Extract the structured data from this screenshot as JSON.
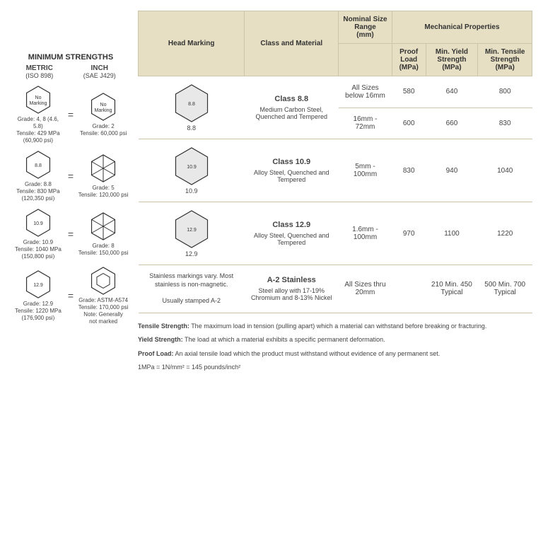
{
  "left": {
    "title": "MINIMUM STRENGTHS",
    "cols": [
      {
        "name": "METRIC",
        "sub": "(ISO 898)"
      },
      {
        "name": "INCH",
        "sub": "(SAE J429)"
      }
    ],
    "rows": [
      {
        "mLabel": "No\nMarking",
        "mTxt": "Grade: 4, 8 (4.6, 5.8)\nTensile: 429 MPa\n(60,900 psi)",
        "iLabel": "No\nMarking",
        "iTxt": "Grade: 2\nTensile: 60,000 psi",
        "iLines": 0
      },
      {
        "mLabel": "8.8",
        "mTxt": "Grade: 8.8\nTensile: 830 MPa\n(120,350 psi)",
        "iLabel": "",
        "iTxt": "Grade: 5\nTensile: 120,000 psi",
        "iLines": 3
      },
      {
        "mLabel": "10.9",
        "mTxt": "Grade: 10.9\nTensile: 1040 MPa\n(150,800 psi)",
        "iLabel": "",
        "iTxt": "Grade: 8\nTensile: 150,000 psi",
        "iLines": 6
      },
      {
        "mLabel": "12.9",
        "mTxt": "Grade: 12.9\nTensile: 1220 MPa\n(176,900 psi)",
        "iLabel": "",
        "iTxt": "Grade: ASTM-A574\nTensile: 170,000 psi\nNote: Generally\nnot marked",
        "iLines": 0,
        "inset": true
      }
    ]
  },
  "table": {
    "headers": {
      "hm": "Head Marking",
      "cm": "Class and Material",
      "nom": "Nominal Size Range",
      "nomSub": "(mm)",
      "mech": "Mechanical Properties",
      "proof": "Proof Load",
      "proofSub": "(MPa)",
      "yield": "Min. Yield Strength",
      "yieldSub": "(MPa)",
      "tens": "Min. Tensile Strength",
      "tensSub": "(MPa)"
    },
    "rows": [
      {
        "mark": "8.8",
        "className": "Class 8.8",
        "mat": "Medium Carbon Steel, Quenched and Tempered",
        "span": 2,
        "sub": [
          {
            "size": "All Sizes below 16mm",
            "p": "580",
            "y": "640",
            "t": "800"
          },
          {
            "size": "16mm - 72mm",
            "p": "600",
            "y": "660",
            "t": "830"
          }
        ]
      },
      {
        "mark": "10.9",
        "className": "Class 10.9",
        "mat": "Alloy Steel, Quenched and Tempered",
        "span": 1,
        "sub": [
          {
            "size": "5mm - 100mm",
            "p": "830",
            "y": "940",
            "t": "1040"
          }
        ]
      },
      {
        "mark": "12.9",
        "className": "Class 12.9",
        "mat": "Alloy Steel, Quenched and Tempered",
        "span": 1,
        "sub": [
          {
            "size": "1.6mm - 100mm",
            "p": "970",
            "y": "1100",
            "t": "1220"
          }
        ]
      },
      {
        "markText": "Stainless markings vary. Most stainless is non-magnetic.\n\nUsually stamped A-2",
        "className": "A-2 Stainless",
        "mat": "Steel alloy with 17-19% Chromium and 8-13% Nickel",
        "span": 1,
        "sub": [
          {
            "size": "All Sizes thru 20mm",
            "p": "",
            "y": "210 Min. 450 Typical",
            "t": "500 Min. 700 Typical"
          }
        ]
      }
    ]
  },
  "notes": {
    "tensile": "Tensile Strength: The maximum load in tension (pulling apart) which a material can withstand before breaking or fracturing.",
    "yield": "Yield Strength: The load at which a material exhibits a specific permanent deformation.",
    "proof": "Proof Load: An axial tensile load which the product must withstand without evidence of any permanent set.",
    "conv": "1MPa = 1N/mm² = 145 pounds/inch²"
  }
}
